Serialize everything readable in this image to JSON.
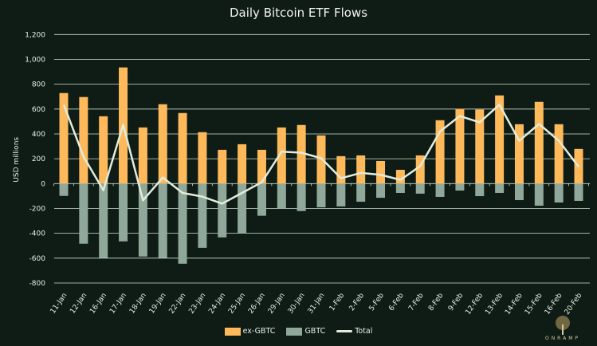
{
  "chart_data": {
    "type": "bar",
    "title": "Daily Bitcoin ETF Flows",
    "xlabel": "",
    "ylabel": "USD millions",
    "ylim": [
      -800,
      1200
    ],
    "yticks": [
      -800,
      -600,
      -400,
      -200,
      0,
      200,
      400,
      600,
      800,
      1000,
      1200
    ],
    "ytick_labels": [
      "-800",
      "-600",
      "-400",
      "-200",
      "0",
      "200",
      "400",
      "600",
      "800",
      "1,000",
      "1,200"
    ],
    "grid": true,
    "legend_position": "bottom",
    "categories": [
      "11-Jan",
      "12-Jan",
      "16-Jan",
      "17-Jan",
      "18-Jan",
      "19-Jan",
      "22-Jan",
      "23-Jan",
      "24-Jan",
      "25-Jan",
      "26-Jan",
      "29-Jan",
      "30-Jan",
      "31-Jan",
      "1-Feb",
      "2-Feb",
      "5-Feb",
      "6-Feb",
      "7-Feb",
      "8-Feb",
      "9-Feb",
      "12-Feb",
      "13-Feb",
      "14-Feb",
      "15-Feb",
      "16-Feb",
      "20-Feb"
    ],
    "series": [
      {
        "name": "ex-GBTC",
        "type": "bar",
        "color": "#fdb95a",
        "values": [
          729,
          697,
          542,
          935,
          452,
          639,
          568,
          414,
          272,
          317,
          272,
          452,
          472,
          388,
          221,
          227,
          182,
          111,
          227,
          510,
          602,
          596,
          710,
          478,
          658,
          478,
          279
        ]
      },
      {
        "name": "GBTC",
        "type": "bar",
        "color": "#8fa89a",
        "values": [
          -99,
          -484,
          -598,
          -465,
          -587,
          -598,
          -645,
          -517,
          -433,
          -397,
          -259,
          -197,
          -221,
          -191,
          -184,
          -146,
          -114,
          -75,
          -81,
          -107,
          -56,
          -101,
          -75,
          -133,
          -178,
          -152,
          -139
        ]
      },
      {
        "name": "Total",
        "type": "line",
        "color": "#e3ecdc",
        "values": [
          635,
          217,
          -54,
          474,
          -135,
          49,
          -75,
          -105,
          -161,
          -75,
          11,
          257,
          249,
          204,
          43,
          86,
          71,
          30,
          141,
          420,
          544,
          493,
          635,
          345,
          480,
          345,
          135
        ]
      }
    ]
  },
  "logo_text": "ONRAMP"
}
